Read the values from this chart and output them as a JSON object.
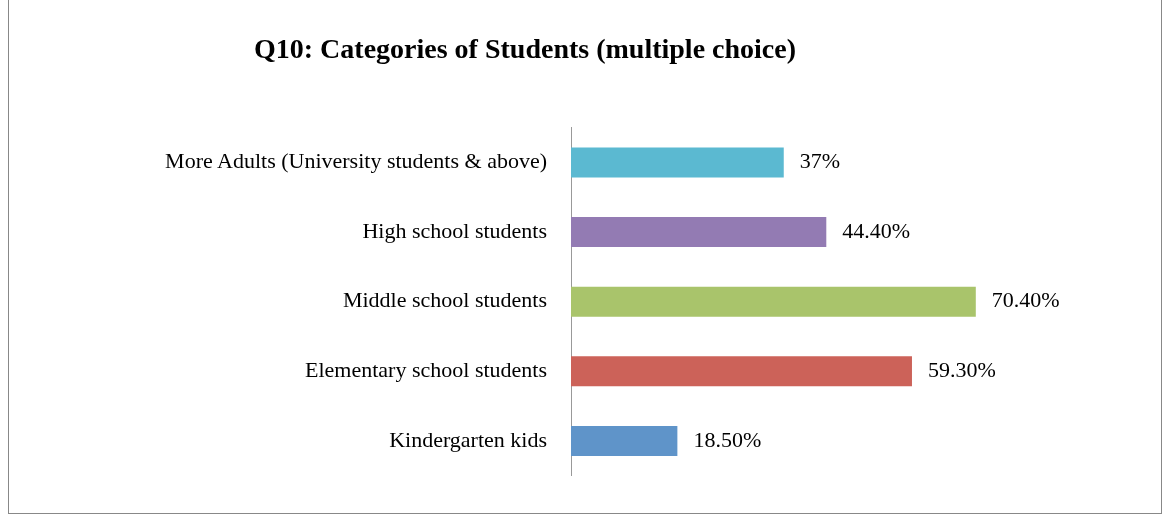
{
  "chart_data": {
    "type": "bar",
    "orientation": "horizontal",
    "title": "Q10: Categories of Students (multiple choice)",
    "categories": [
      "More Adults (University students & above)",
      "High school students",
      "Middle school students",
      "Elementary school students",
      "Kindergarten kids"
    ],
    "values": [
      37,
      44.4,
      70.4,
      59.3,
      18.5
    ],
    "colors": [
      "#5bb9d1",
      "#937bb3",
      "#a9c46b",
      "#cc6259",
      "#5f94c9"
    ],
    "value_labels": [
      "37%",
      "44.40%",
      "70.40%",
      "59.30%",
      "18.50%"
    ],
    "legend": false
  }
}
